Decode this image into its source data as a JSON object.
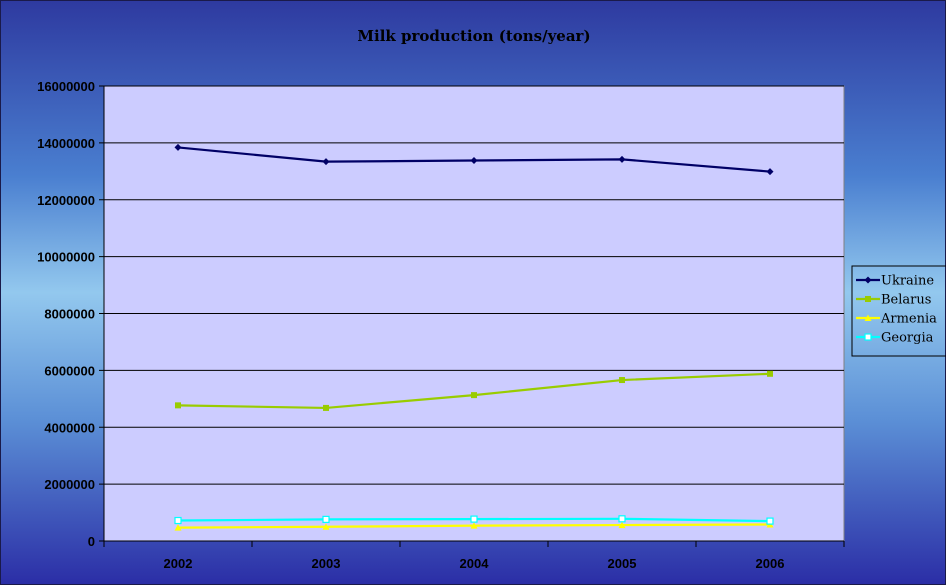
{
  "chart_data": {
    "type": "line",
    "title": "Milk production (tons/year)",
    "xlabel": "",
    "ylabel": "",
    "categories": [
      "2002",
      "2003",
      "2004",
      "2005",
      "2006"
    ],
    "ylim": [
      0,
      16000000
    ],
    "yticks": [
      "0",
      "2000000",
      "4000000",
      "6000000",
      "8000000",
      "10000000",
      "12000000",
      "14000000",
      "16000000"
    ],
    "grid": true,
    "legend_position": "right",
    "series": [
      {
        "name": "Ukraine",
        "values": [
          13840000,
          13340000,
          13380000,
          13420000,
          12990000
        ],
        "color": "#000066",
        "marker": "diamond"
      },
      {
        "name": "Belarus",
        "values": [
          4770000,
          4680000,
          5130000,
          5660000,
          5880000
        ],
        "color": "#99cc00",
        "marker": "square"
      },
      {
        "name": "Armenia",
        "values": [
          470000,
          500000,
          540000,
          560000,
          580000
        ],
        "color": "#ffff00",
        "marker": "triangle"
      },
      {
        "name": "Georgia",
        "values": [
          720000,
          760000,
          770000,
          780000,
          700000
        ],
        "color": "#00ffff",
        "marker": "hollow-square"
      }
    ],
    "colors": {
      "plot_background": "#ccccff",
      "gridline": "#000000"
    }
  }
}
